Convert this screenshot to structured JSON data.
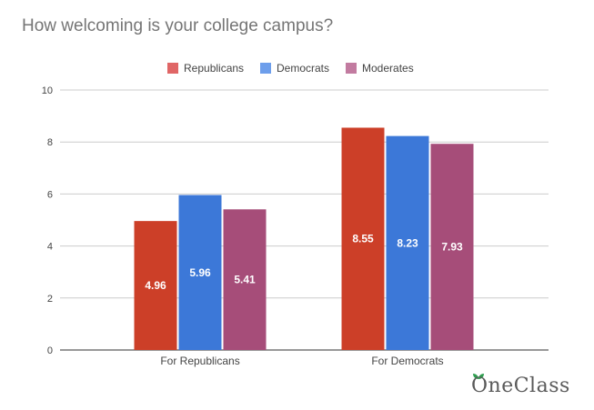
{
  "chart_data": {
    "type": "bar",
    "title": "How welcoming is your college campus?",
    "categories": [
      "For Republicans",
      "For Democrats"
    ],
    "series": [
      {
        "name": "Republicans",
        "color": "#cc3f28",
        "legend_color": "#e06666",
        "values": [
          4.96,
          8.55
        ]
      },
      {
        "name": "Democrats",
        "color": "#3c78d8",
        "legend_color": "#6d9eeb",
        "values": [
          5.96,
          8.23
        ]
      },
      {
        "name": "Moderates",
        "color": "#a64d79",
        "legend_color": "#c27ba0",
        "values": [
          5.41,
          7.93
        ]
      }
    ],
    "data_labels": [
      [
        "4.96",
        "8.55"
      ],
      [
        "5.96",
        "8.23"
      ],
      [
        "5.41",
        "7.93"
      ]
    ],
    "ylim": [
      0,
      10
    ],
    "yticks": [
      0,
      2,
      4,
      6,
      8,
      10
    ],
    "grid": true,
    "legend_position": "top-center"
  },
  "logo": {
    "text": "OneClass",
    "leaf_color": "#2e9e4f"
  }
}
